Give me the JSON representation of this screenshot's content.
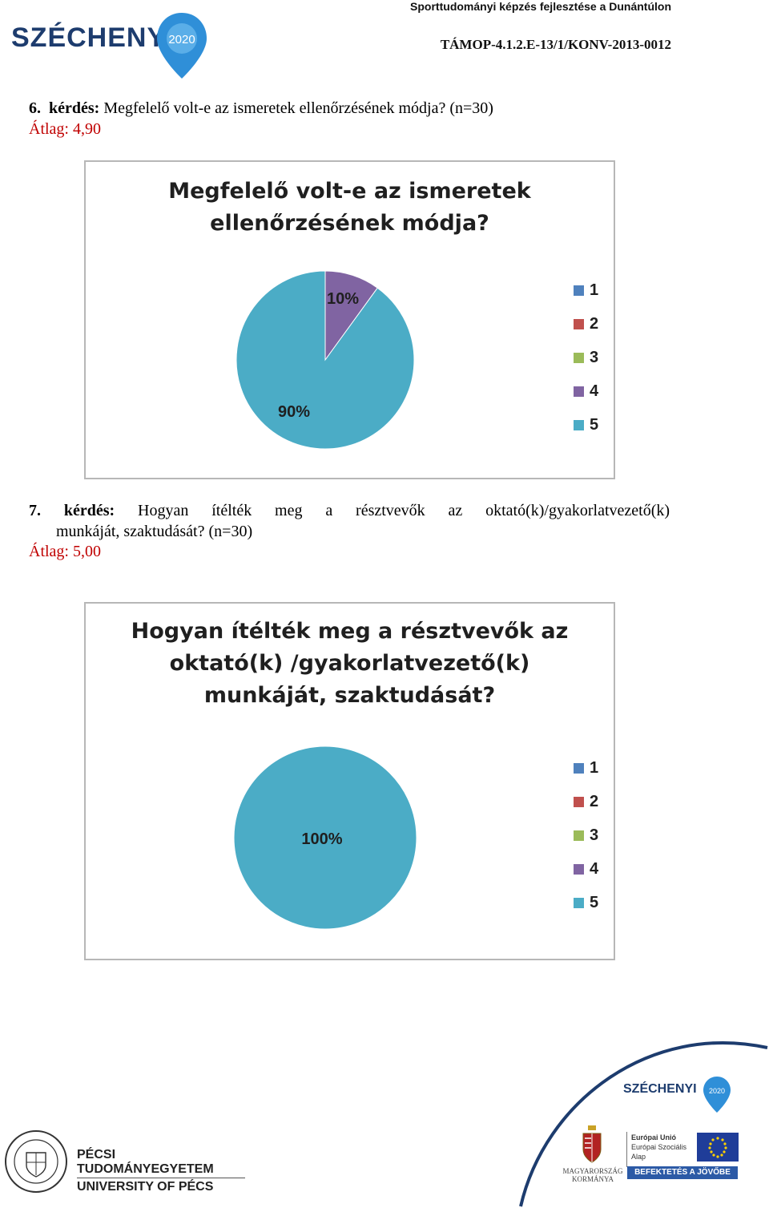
{
  "header": {
    "project": "Sporttudományi képzés fejlesztése a Dunántúlon",
    "code": "TÁMOP-4.1.2.E-13/1/KONV-2013-0012",
    "logo_text": "SZÉCHENYI",
    "logo_year": "2020"
  },
  "q6": {
    "number": "6.",
    "label": "kérdés:",
    "text": "Megfelelő volt-e az ismeretek ellenőrzésének módja?",
    "n": "(n=30)",
    "average": "Átlag: 4,90"
  },
  "q7": {
    "number": "7.",
    "label": "kérdés:",
    "text_line1": "Hogyan ítélték meg a résztvevők az oktató(k)/gyakorlatvezető(k)",
    "text_line2": "munkáját, szaktudását?",
    "n": "(n=30)",
    "average": "Átlag: 5,00"
  },
  "chart_data": [
    {
      "type": "pie",
      "title": "Megfelelő volt-e az ismeretek ellenőrzésének módja?",
      "title_lines": [
        "Megfelelő volt-e az ismeretek",
        "ellenőrzésének módja?"
      ],
      "categories": [
        "1",
        "2",
        "3",
        "4",
        "5"
      ],
      "values": [
        0,
        0,
        0,
        10,
        90
      ],
      "data_labels": [
        "",
        "",
        "",
        "10%",
        "90%"
      ],
      "colors": [
        "#4f81bd",
        "#c0504d",
        "#9bbb59",
        "#8064a2",
        "#4bacc6"
      ],
      "legend": "right"
    },
    {
      "type": "pie",
      "title": "Hogyan ítélték meg a résztvevők az oktató(k) /gyakorlatvezető(k) munkáját, szaktudását?",
      "title_lines": [
        "Hogyan ítélték meg a résztvevők az",
        "oktató(k) /gyakorlatvezető(k)",
        "munkáját, szaktudását?"
      ],
      "categories": [
        "1",
        "2",
        "3",
        "4",
        "5"
      ],
      "values": [
        0,
        0,
        0,
        0,
        100
      ],
      "data_labels": [
        "",
        "",
        "",
        "",
        "100%"
      ],
      "colors": [
        "#4f81bd",
        "#c0504d",
        "#9bbb59",
        "#8064a2",
        "#4bacc6"
      ],
      "legend": "right"
    }
  ],
  "footer": {
    "pte_line1": "PÉCSI TUDOMÁNYEGYETEM",
    "pte_line2": "UNIVERSITY OF PÉCS",
    "szechenyi": "SZÉCHENYI",
    "szechenyi_year": "2020",
    "gov_line1": "MAGYARORSZÁG",
    "gov_line2": "KORMÁNYA",
    "eu_line1": "Európai Unió",
    "eu_line2": "Európai Szociális",
    "eu_line3": "Alap",
    "eu_banner": "BEFEKTETÉS A JÖVŐBE"
  }
}
